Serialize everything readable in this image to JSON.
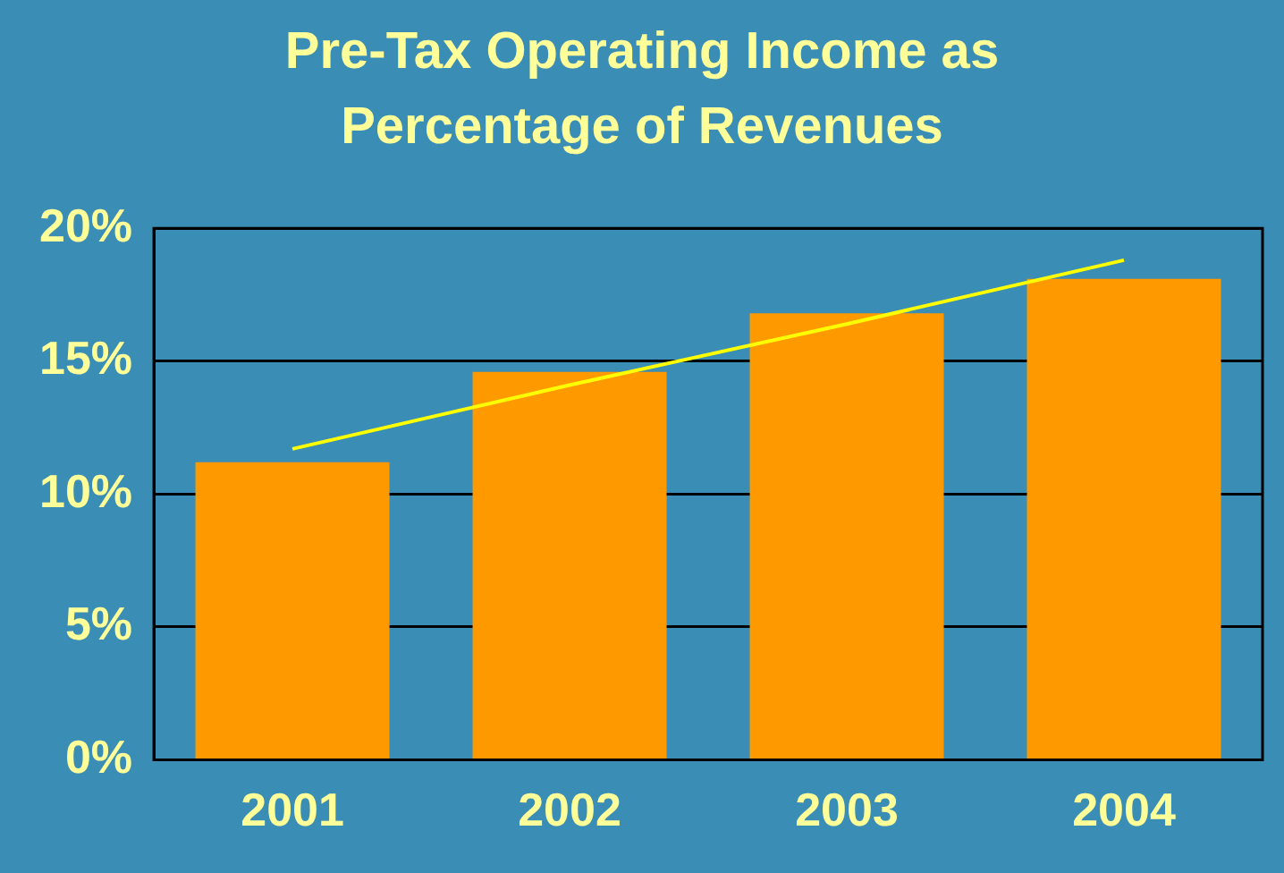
{
  "chart_data": {
    "type": "bar",
    "title": "Pre-Tax Operating Income as Percentage of Revenues",
    "categories": [
      "2001",
      "2002",
      "2003",
      "2004"
    ],
    "series": [
      {
        "color": "#ff9900",
        "values": [
          11.2,
          14.6,
          16.8,
          18.1
        ]
      },
      {
        "type": "line",
        "color": "#ffff00",
        "values": [
          11.7,
          14.1,
          16.4,
          18.8
        ]
      }
    ],
    "ylim": [
      0,
      20
    ],
    "yticks": [
      {
        "value": 0,
        "label": "0%"
      },
      {
        "value": 5,
        "label": "5%"
      },
      {
        "value": 10,
        "label": "10%"
      },
      {
        "value": 15,
        "label": "15%"
      },
      {
        "value": 20,
        "label": "20%"
      }
    ],
    "grid": "y",
    "legend": false,
    "marker": "none",
    "line_style": "solid"
  }
}
